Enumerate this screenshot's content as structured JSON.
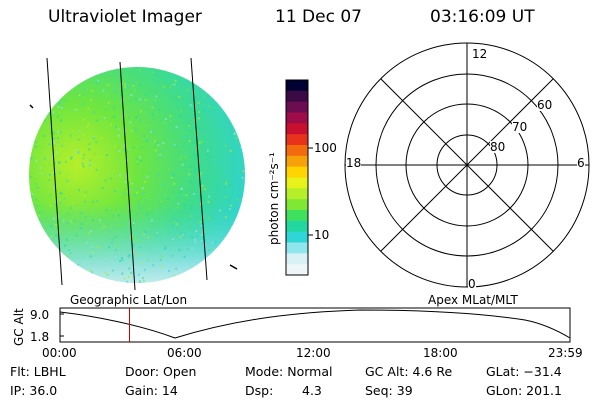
{
  "header": {
    "instrument": "Ultraviolet Imager",
    "date": "11 Dec 07",
    "time": "03:16:09 UT"
  },
  "image_panel": {
    "caption": "Geographic Lat/Lon"
  },
  "colorbar": {
    "unit_label": "photon cm⁻²s⁻¹",
    "tick_labels": [
      "100",
      "10"
    ],
    "colors": [
      "#000033",
      "#3b0a45",
      "#6b0d50",
      "#9e0d4a",
      "#c8102e",
      "#e8321c",
      "#f26b0f",
      "#f7a10a",
      "#ffd400",
      "#e6f21a",
      "#b6ef2a",
      "#7fe835",
      "#3fe05e",
      "#22d8a0",
      "#30d6d6",
      "#8fe6ec",
      "#d8f1f4",
      "#eef6f8"
    ]
  },
  "polar_plot": {
    "caption": "Apex MLat/MLT",
    "mlt_labels": [
      "12",
      "18",
      "6",
      "0"
    ],
    "lat_labels": [
      "60",
      "70",
      "80"
    ]
  },
  "altitude_plot": {
    "y_label": "GC Alt",
    "y_ticks": [
      "9.0",
      "1.8"
    ],
    "x_ticks": [
      "00:00",
      "06:00",
      "12:00",
      "18:00",
      "23:59"
    ],
    "marker_time_hours": 3.27,
    "marker_color": "#cc0000"
  },
  "info_rows": [
    [
      "Flt: LBHL",
      "Door: Open",
      "Mode: Normal",
      "GC Alt: 4.6 Re",
      "GLat: −31.4"
    ],
    [
      "IP: 36.0",
      "Gain: 14",
      "Dsp:",
      "4.3",
      "Seq: 39",
      "GLon: 201.1"
    ]
  ]
}
